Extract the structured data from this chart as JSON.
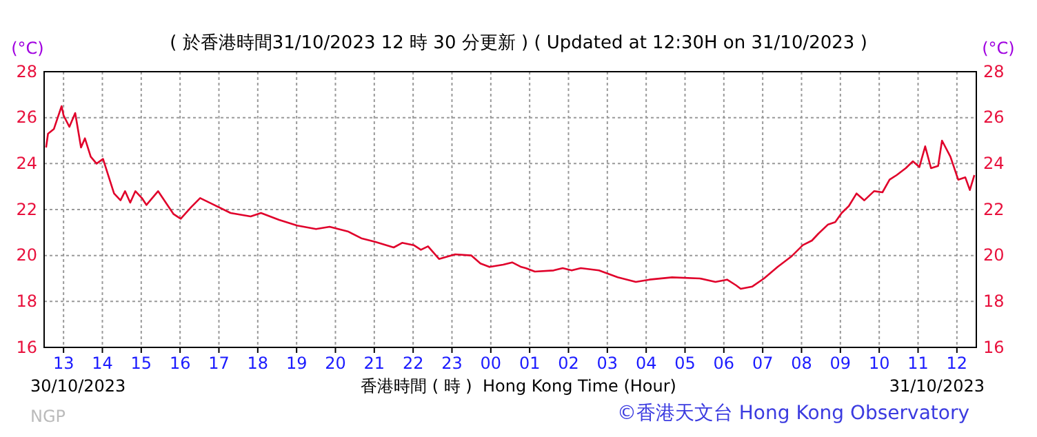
{
  "chart_data": {
    "type": "line",
    "subtitle": "( 於香港時間31/10/2023 12 時 30 分更新 ) ( Updated at 12:30H on 31/10/2023 )",
    "xlabel": "香港時間 ( 時 )  Hong Kong Time (Hour)",
    "ylabel": "(°C)",
    "y2label": "(°C)",
    "annotations": [
      "30/10/2023",
      "31/10/2023",
      "NGP",
      "©香港天文台 Hong Kong Observatory"
    ],
    "xlim": [
      "2023-10-30T12:30",
      "2023-10-31T12:30"
    ],
    "xticks": [
      {
        "value": "2023-10-30T13:00",
        "label": "13"
      },
      {
        "value": "2023-10-30T14:00",
        "label": "14"
      },
      {
        "value": "2023-10-30T15:00",
        "label": "15"
      },
      {
        "value": "2023-10-30T16:00",
        "label": "16"
      },
      {
        "value": "2023-10-30T17:00",
        "label": "17"
      },
      {
        "value": "2023-10-30T18:00",
        "label": "18"
      },
      {
        "value": "2023-10-30T19:00",
        "label": "19"
      },
      {
        "value": "2023-10-30T20:00",
        "label": "20"
      },
      {
        "value": "2023-10-30T21:00",
        "label": "21"
      },
      {
        "value": "2023-10-30T22:00",
        "label": "22"
      },
      {
        "value": "2023-10-30T23:00",
        "label": "23"
      },
      {
        "value": "2023-10-31T00:00",
        "label": "00"
      },
      {
        "value": "2023-10-31T01:00",
        "label": "01"
      },
      {
        "value": "2023-10-31T02:00",
        "label": "02"
      },
      {
        "value": "2023-10-31T03:00",
        "label": "03"
      },
      {
        "value": "2023-10-31T04:00",
        "label": "04"
      },
      {
        "value": "2023-10-31T05:00",
        "label": "05"
      },
      {
        "value": "2023-10-31T06:00",
        "label": "06"
      },
      {
        "value": "2023-10-31T07:00",
        "label": "07"
      },
      {
        "value": "2023-10-31T08:00",
        "label": "08"
      },
      {
        "value": "2023-10-31T09:00",
        "label": "09"
      },
      {
        "value": "2023-10-31T10:00",
        "label": "10"
      },
      {
        "value": "2023-10-31T11:00",
        "label": "11"
      },
      {
        "value": "2023-10-31T12:00",
        "label": "12"
      }
    ],
    "ylim": [
      16,
      28
    ],
    "yticks": [
      16,
      18,
      20,
      22,
      24,
      26,
      28
    ],
    "y2lim": [
      16,
      28
    ],
    "y2ticks": [
      16,
      18,
      20,
      22,
      24,
      26,
      28
    ],
    "grid": true,
    "line_style": "solid",
    "marker": "none",
    "series": [
      {
        "color": "#e0002a",
        "x": [
          "2023-10-30T12:33",
          "2023-10-30T12:36",
          "2023-10-30T12:45",
          "2023-10-30T12:51",
          "2023-10-30T12:57",
          "2023-10-30T13:00",
          "2023-10-30T13:09",
          "2023-10-30T13:18",
          "2023-10-30T13:27",
          "2023-10-30T13:33",
          "2023-10-30T13:42",
          "2023-10-30T13:51",
          "2023-10-30T14:01",
          "2023-10-30T14:18",
          "2023-10-30T14:28",
          "2023-10-30T14:35",
          "2023-10-30T14:43",
          "2023-10-30T14:51",
          "2023-10-30T15:01",
          "2023-10-30T15:08",
          "2023-10-30T15:26",
          "2023-10-30T15:50",
          "2023-10-30T16:01",
          "2023-10-30T16:17",
          "2023-10-30T16:31",
          "2023-10-30T16:49",
          "2023-10-30T17:18",
          "2023-10-30T17:49",
          "2023-10-30T18:05",
          "2023-10-30T18:33",
          "2023-10-30T19:01",
          "2023-10-30T19:30",
          "2023-10-30T19:51",
          "2023-10-30T20:19",
          "2023-10-30T20:40",
          "2023-10-30T21:01",
          "2023-10-30T21:30",
          "2023-10-30T21:43",
          "2023-10-30T22:01",
          "2023-10-30T22:12",
          "2023-10-30T22:23",
          "2023-10-30T22:40",
          "2023-10-30T23:05",
          "2023-10-30T23:30",
          "2023-10-30T23:44",
          "2023-10-30T23:58",
          "2023-10-31T00:19",
          "2023-10-31T00:33",
          "2023-10-31T00:47",
          "2023-10-31T00:54",
          "2023-10-31T01:08",
          "2023-10-31T01:37",
          "2023-10-31T01:51",
          "2023-10-31T02:05",
          "2023-10-31T02:19",
          "2023-10-31T02:47",
          "2023-10-31T03:16",
          "2023-10-31T03:44",
          "2023-10-31T04:05",
          "2023-10-31T04:40",
          "2023-10-31T05:23",
          "2023-10-31T05:47",
          "2023-10-31T06:05",
          "2023-10-31T06:19",
          "2023-10-31T06:26",
          "2023-10-31T06:44",
          "2023-10-31T07:02",
          "2023-10-31T07:23",
          "2023-10-31T07:44",
          "2023-10-31T08:02",
          "2023-10-31T08:16",
          "2023-10-31T08:26",
          "2023-10-31T08:41",
          "2023-10-31T08:52",
          "2023-10-31T09:02",
          "2023-10-31T09:13",
          "2023-10-31T09:25",
          "2023-10-31T09:37",
          "2023-10-31T09:52",
          "2023-10-31T10:05",
          "2023-10-31T10:16",
          "2023-10-31T10:27",
          "2023-10-31T10:41",
          "2023-10-31T10:52",
          "2023-10-31T11:02",
          "2023-10-31T11:11",
          "2023-10-31T11:20",
          "2023-10-31T11:31",
          "2023-10-31T11:37",
          "2023-10-31T11:50",
          "2023-10-31T12:02",
          "2023-10-31T12:13",
          "2023-10-31T12:20",
          "2023-10-31T12:27"
        ],
        "values": [
          24.7,
          25.3,
          25.5,
          26.0,
          26.5,
          26.1,
          25.6,
          26.2,
          24.7,
          25.1,
          24.3,
          24.0,
          24.2,
          22.7,
          22.4,
          22.8,
          22.3,
          22.8,
          22.5,
          22.2,
          22.8,
          21.8,
          21.6,
          22.1,
          22.5,
          22.25,
          21.85,
          21.7,
          21.85,
          21.55,
          21.3,
          21.15,
          21.25,
          21.05,
          20.75,
          20.6,
          20.35,
          20.55,
          20.45,
          20.25,
          20.4,
          19.85,
          20.05,
          20.0,
          19.65,
          19.5,
          19.6,
          19.7,
          19.5,
          19.45,
          19.3,
          19.35,
          19.45,
          19.35,
          19.45,
          19.35,
          19.05,
          18.85,
          18.95,
          19.05,
          19.0,
          18.85,
          18.95,
          18.7,
          18.55,
          18.65,
          19.0,
          19.5,
          19.95,
          20.45,
          20.65,
          20.95,
          21.35,
          21.45,
          21.85,
          22.15,
          22.7,
          22.4,
          22.8,
          22.75,
          23.3,
          23.5,
          23.8,
          24.1,
          23.85,
          24.75,
          23.8,
          23.9,
          25.0,
          24.3,
          23.3,
          23.4,
          22.85,
          23.5
        ]
      }
    ]
  }
}
